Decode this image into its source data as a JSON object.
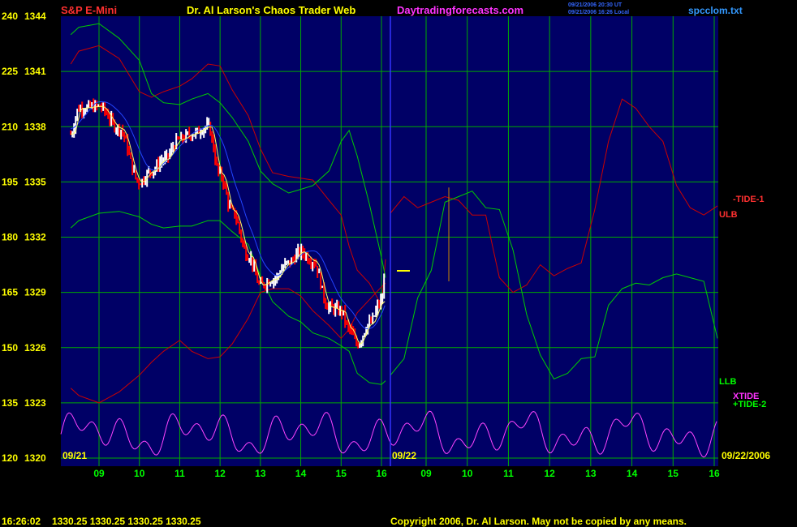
{
  "header": {
    "instrument": "S&P E-Mini",
    "center_title": "Dr. Al Larson's Chaos Trader Web",
    "site": "Daytradingforecasts.com",
    "timestamp_1": "09/21/2006 20:30 UT",
    "timestamp_2": "09/21/2006 16:26 Local",
    "file": "spcclom.txt"
  },
  "footer": {
    "time": "16:26:02",
    "quote": "1330.25 1330.25 1330.25 1330.25",
    "copyright": "Copyright 2006, Dr. Al Larson. May not be copied by any means."
  },
  "colors": {
    "background": "#000066",
    "grid": "#00aa00",
    "price_up": "#ffffff",
    "price_down": "#ff0000",
    "ma_short": "#ffff66",
    "ma_long": "#2244ff",
    "ulb": "#cc0000",
    "llb": "#00cc00",
    "tide": "#ff44ff",
    "cursor": "#3333ff",
    "label_yellow": "#ffff00",
    "label_red": "#ff3030",
    "label_green": "#00ff00",
    "label_magenta": "#ff33ff",
    "label_cyan": "#3399ff"
  },
  "chart_data": {
    "type": "line",
    "y_left_ticks": [
      "240",
      "225",
      "210",
      "195",
      "180",
      "165",
      "150",
      "135",
      "120"
    ],
    "y_price_ticks": [
      "1344",
      "1341",
      "1338",
      "1335",
      "1332",
      "1329",
      "1326",
      "1323",
      "1320"
    ],
    "ylim": [
      1320,
      1344
    ],
    "x_hour_ticks": [
      "09",
      "10",
      "11",
      "12",
      "13",
      "14",
      "15",
      "16",
      "09",
      "10",
      "11",
      "12",
      "13",
      "14",
      "15",
      "16"
    ],
    "date_left": "09/21",
    "date_mid": "09/22",
    "date_right": "09/22/2006",
    "last_price": 1330.25,
    "x": [
      8.3,
      8.5,
      9.0,
      9.5,
      10.0,
      10.3,
      10.6,
      11.0,
      11.3,
      11.7,
      12.0,
      12.3,
      12.7,
      13.0,
      13.3,
      13.7,
      14.0,
      14.3,
      14.7,
      15.0,
      15.2,
      15.4,
      15.7,
      16.0,
      16.1
    ],
    "series": [
      {
        "name": "price",
        "values": [
          1337.6,
          1339.0,
          1339.1,
          1337.9,
          1335.0,
          1335.6,
          1336.2,
          1337.3,
          1337.6,
          1338.0,
          1335.4,
          1333.4,
          1331.0,
          1329.4,
          1329.7,
          1330.6,
          1331.2,
          1330.7,
          1328.2,
          1328.0,
          1327.0,
          1326.2,
          1327.3,
          1328.5,
          1330.0
        ]
      },
      {
        "name": "ULB",
        "values": [
          1341.4,
          1342.1,
          1342.4,
          1341.7,
          1339.9,
          1339.6,
          1339.9,
          1340.2,
          1340.6,
          1341.4,
          1341.3,
          1340.0,
          1338.6,
          1336.8,
          1335.5,
          1335.3,
          1335.2,
          1335.1,
          1334.0,
          1333.2,
          1331.5,
          1330.2,
          1329.5,
          1328.3,
          1330.8
        ]
      },
      {
        "name": "LLB",
        "values": [
          1332.5,
          1332.9,
          1333.3,
          1333.4,
          1333.1,
          1332.7,
          1332.5,
          1332.6,
          1332.6,
          1332.9,
          1332.9,
          1332.3,
          1331.6,
          1329.9,
          1328.5,
          1327.7,
          1327.4,
          1326.8,
          1326.5,
          1326.1,
          1325.8,
          1324.6,
          1324.1,
          1324.0,
          1324.2
        ]
      },
      {
        "name": "XTIDE",
        "values": [
          1322.5,
          1320.6,
          1321.2,
          1320.9,
          1321.9,
          1320.6,
          1322.7,
          1321.1,
          1320.6,
          1322.9,
          1321.0,
          1321.8,
          1320.7,
          1322.0,
          1321.0,
          1322.5,
          1320.7,
          1321.8,
          1320.8,
          1322.7,
          1320.6,
          1323.3,
          1321.3,
          1322.1,
          1323.4
        ]
      },
      {
        "name": "-TIDE-1",
        "values": [
          1333.3,
          1334.2,
          1333.6,
          1333.9,
          1334.2,
          1334.0,
          1333.2,
          1333.2,
          1329.8,
          1329.0,
          1329.4,
          1330.5,
          1329.9,
          1330.3,
          1330.6,
          1333.5,
          1337.2,
          1339.5,
          1339.0,
          1338.0,
          1337.2,
          1334.8,
          1333.6,
          1333.2,
          1333.7
        ]
      },
      {
        "name": "+TIDE-2",
        "values": [
          1324.5,
          1325.4,
          1328.7,
          1330.2,
          1333.9,
          1334.2,
          1334.5,
          1333.6,
          1333.5,
          1331.3,
          1327.8,
          1325.6,
          1324.3,
          1324.6,
          1325.4,
          1325.5,
          1328.3,
          1329.2,
          1329.5,
          1329.4,
          1329.8,
          1330.0,
          1329.8,
          1329.6,
          1326.5
        ]
      }
    ],
    "labels": {
      "tide1": "-TIDE-1",
      "ulb": "ULB",
      "llb": "LLB",
      "xtide": "XTIDE",
      "tide2": "+TIDE-2"
    }
  }
}
